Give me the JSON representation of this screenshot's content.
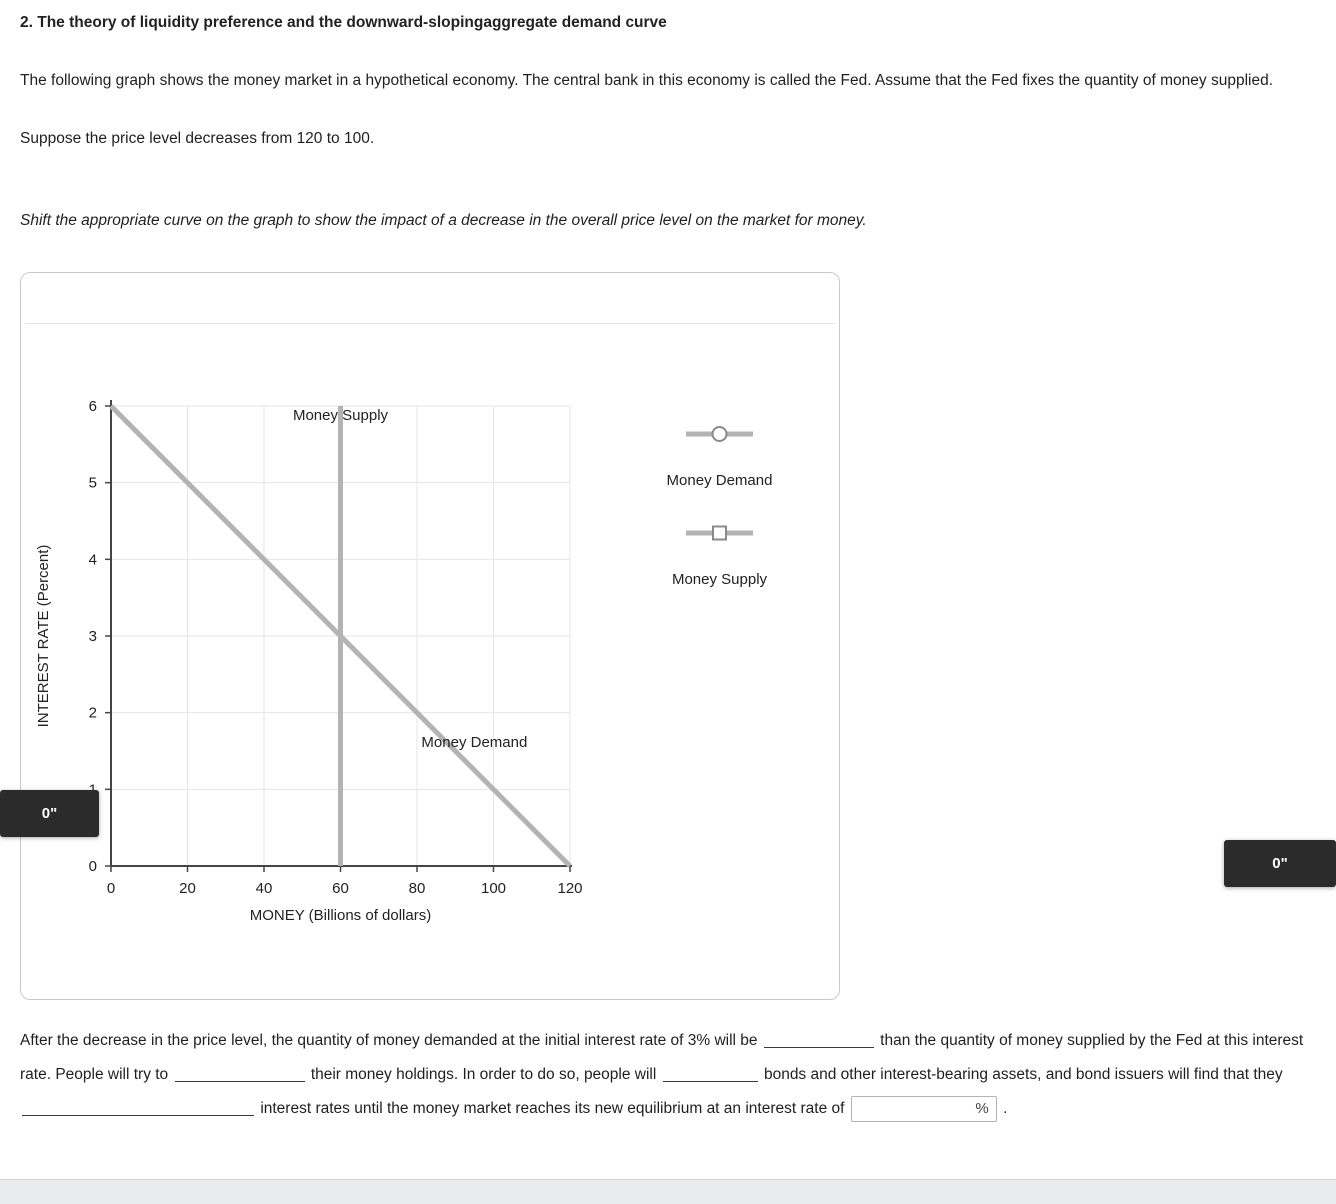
{
  "heading": "2. The theory of liquidity preference and the downward-slopingaggregate demand curve",
  "para1": "The following graph shows the money market in a hypothetical economy. The central bank in this economy is called the Fed. Assume that the Fed fixes the quantity of money supplied.",
  "para2": "Suppose the price level decreases from 120 to 100.",
  "instruction": "Shift the appropriate curve on the graph to show the impact of a decrease in the overall price level on the market for money.",
  "chart_data": {
    "type": "line",
    "title": "",
    "xlabel": "MONEY (Billions of dollars)",
    "ylabel": "INTEREST RATE (Percent)",
    "xlim": [
      0,
      120
    ],
    "ylim": [
      0,
      6
    ],
    "x_ticks": [
      0,
      20,
      40,
      60,
      80,
      100,
      120
    ],
    "y_ticks": [
      0,
      1,
      2,
      3,
      4,
      5,
      6
    ],
    "grid": true,
    "curve_color": "#b3b3b3",
    "axis_color": "#444444",
    "grid_color": "#e6e6e6",
    "series": [
      {
        "name": "Money Supply",
        "points": [
          [
            60,
            0
          ],
          [
            60,
            6
          ]
        ]
      },
      {
        "name": "Money Demand",
        "points": [
          [
            0,
            6
          ],
          [
            120,
            0
          ]
        ]
      }
    ],
    "annotations": [
      {
        "text": "Money Supply",
        "x": 60,
        "y": 5.82
      },
      {
        "text": "Money Demand",
        "x": 95,
        "y": 1.55
      }
    ],
    "legend": [
      {
        "label": "Money Demand",
        "marker": "circle"
      },
      {
        "label": "Money Supply",
        "marker": "square"
      }
    ],
    "legend_position": "right"
  },
  "badges": {
    "left": "0\"",
    "right": "0\""
  },
  "fill": {
    "t1": "After the decrease in the price level, the quantity of money demanded at the initial interest rate of 3% will be",
    "t2": "than the quantity of money supplied by the Fed at this interest rate. People will try to",
    "t3": "their money holdings. In order to do so, people will",
    "t4": "bonds and other interest-bearing assets, and bond issuers will find that they",
    "t5": "interest rates until the money market reaches its new equilibrium at an interest rate of",
    "input_value": "",
    "input_suffix": "%",
    "t6": "."
  }
}
